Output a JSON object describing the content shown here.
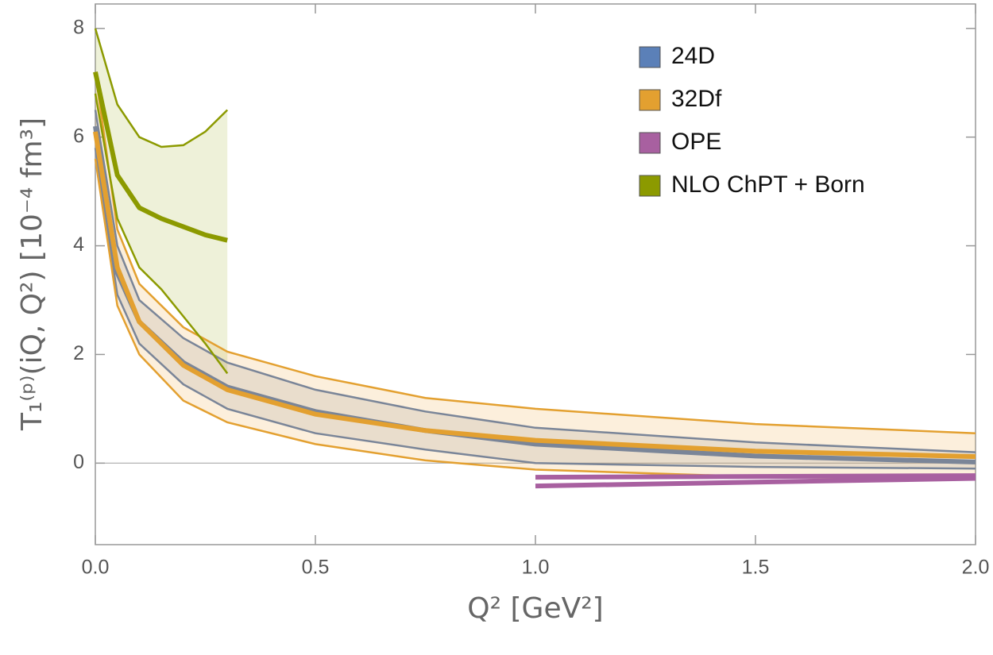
{
  "chart_data": {
    "type": "band",
    "x_label": "Q² [GeV²]",
    "y_label": "T₁⁽ᵖ⁾(iQ, Q²) [10⁻⁴ fm³]",
    "xlim": [
      0,
      2.0
    ],
    "ylim": [
      -1.5,
      8.45
    ],
    "xticks": [
      {
        "value": 0,
        "label": "0.0"
      },
      {
        "value": 0.5,
        "label": "0.5"
      },
      {
        "value": 1.0,
        "label": "1.0"
      },
      {
        "value": 1.5,
        "label": "1.5"
      },
      {
        "value": 2.0,
        "label": "2.0"
      }
    ],
    "yticks": [
      0,
      2,
      4,
      6,
      8
    ],
    "legend": "top-right",
    "series": [
      {
        "name": "24D",
        "color": "#5b80b8",
        "line_color": "#7a8598",
        "band_color": "#8a8f9c",
        "x": [
          0,
          0.05,
          0.1,
          0.2,
          0.3,
          0.5,
          0.75,
          1.0,
          1.5,
          2.0
        ],
        "values": [
          6.2,
          3.5,
          2.6,
          1.85,
          1.4,
          0.95,
          0.6,
          0.35,
          0.13,
          0.02
        ],
        "lower": [
          5.8,
          3.1,
          2.2,
          1.45,
          1.0,
          0.55,
          0.25,
          0.0,
          -0.07,
          -0.1
        ],
        "upper": [
          6.5,
          4.0,
          3.0,
          2.3,
          1.85,
          1.35,
          0.95,
          0.65,
          0.38,
          0.2
        ]
      },
      {
        "name": "32Df",
        "color": "#e3a030",
        "line_color": "#e3a030",
        "band_color": "#f0b050",
        "x": [
          0,
          0.05,
          0.1,
          0.2,
          0.3,
          0.5,
          0.75,
          1.0,
          1.5,
          2.0
        ],
        "values": [
          6.1,
          3.6,
          2.6,
          1.8,
          1.35,
          0.9,
          0.6,
          0.42,
          0.22,
          0.12
        ],
        "lower": [
          5.6,
          2.9,
          2.0,
          1.15,
          0.75,
          0.35,
          0.05,
          -0.12,
          -0.25,
          -0.3
        ],
        "upper": [
          7.2,
          4.3,
          3.3,
          2.5,
          2.05,
          1.6,
          1.2,
          1.0,
          0.72,
          0.55
        ]
      },
      {
        "name": "OPE",
        "color": "#a860a0",
        "line_color": "#a860a0",
        "x": [
          1.0,
          1.5,
          2.0
        ],
        "lower": [
          -0.42,
          -0.35,
          -0.28
        ],
        "upper": [
          -0.26,
          -0.245,
          -0.23
        ]
      },
      {
        "name": "NLO ChPT + Born",
        "color": "#8c9a00",
        "line_color": "#8c9a00",
        "band_color": "#a8b840",
        "x": [
          0,
          0.05,
          0.1,
          0.15,
          0.2,
          0.25,
          0.3
        ],
        "values": [
          7.2,
          5.3,
          4.7,
          4.5,
          4.35,
          4.2,
          4.1
        ],
        "lower": [
          6.8,
          4.5,
          3.6,
          3.2,
          2.7,
          2.2,
          1.65
        ],
        "upper": [
          8.0,
          6.6,
          6.0,
          5.82,
          5.85,
          6.1,
          6.5
        ]
      }
    ]
  }
}
